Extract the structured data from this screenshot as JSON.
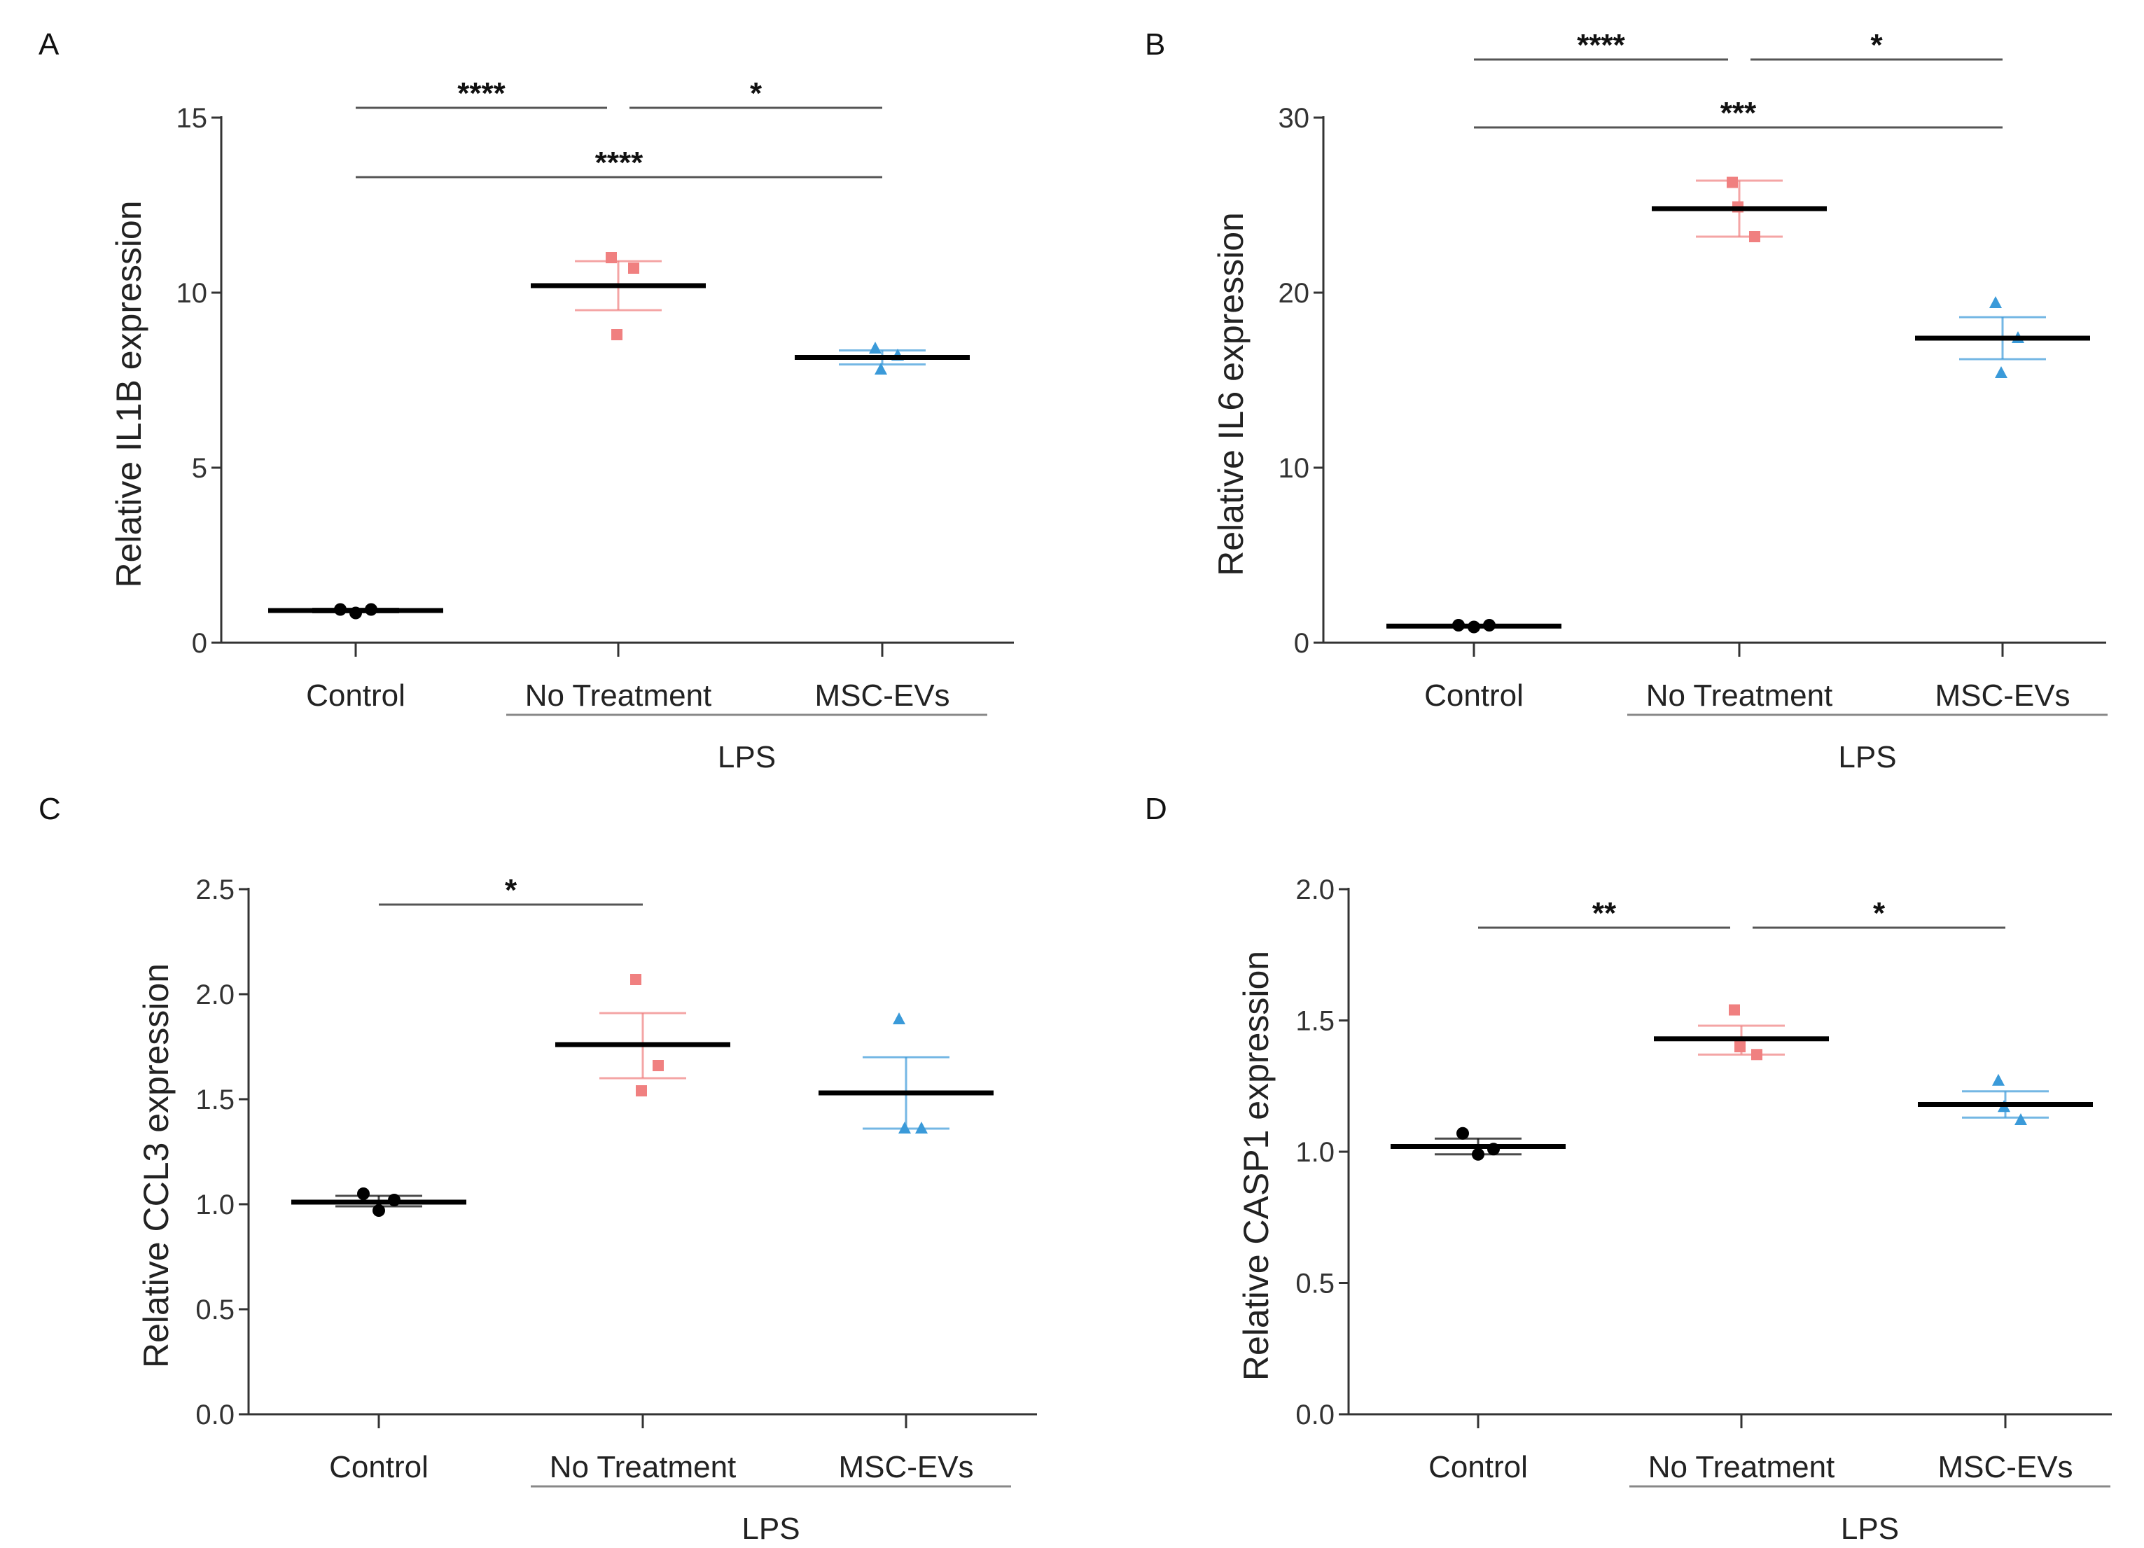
{
  "chart_data": [
    {
      "type": "scatter",
      "panel": "A",
      "ylabel": "Relative IL1B expression",
      "ylim": [
        0,
        15
      ],
      "yticks": [
        "0",
        "5",
        "10",
        "15"
      ],
      "ytick_values": [
        0,
        5,
        10,
        15
      ],
      "categories": [
        "Control",
        "No Treatment",
        "MSC-EVs"
      ],
      "group_label": "LPS",
      "series": [
        {
          "name": "Control",
          "color": "#000000",
          "marker": "circle",
          "points": [
            0.95,
            0.85,
            0.95
          ],
          "mean": 0.92,
          "err_low": 0.87,
          "err_high": 0.97
        },
        {
          "name": "No Treatment",
          "color": "#f08080",
          "marker": "square",
          "points": [
            11.0,
            10.7,
            8.8
          ],
          "mean": 10.2,
          "err_low": 9.5,
          "err_high": 10.9
        },
        {
          "name": "MSC-EVs",
          "color": "#3a9ad9",
          "marker": "triangle",
          "points": [
            8.4,
            8.2,
            7.8
          ],
          "mean": 8.15,
          "err_low": 7.95,
          "err_high": 8.35
        }
      ],
      "significance": [
        {
          "from": 0,
          "to": 1,
          "label": "****",
          "level": 2
        },
        {
          "from": 1,
          "to": 2,
          "label": "*",
          "level": 2
        },
        {
          "from": 0,
          "to": 2,
          "label": "****",
          "level": 1
        }
      ]
    },
    {
      "type": "scatter",
      "panel": "B",
      "ylabel": "Relative IL6 expression",
      "ylim": [
        0,
        30
      ],
      "yticks": [
        "0",
        "10",
        "20",
        "30"
      ],
      "ytick_values": [
        0,
        10,
        20,
        30
      ],
      "categories": [
        "Control",
        "No Treatment",
        "MSC-EVs"
      ],
      "group_label": "LPS",
      "series": [
        {
          "name": "Control",
          "color": "#000000",
          "marker": "circle",
          "points": [
            1.0,
            0.9,
            1.0
          ],
          "mean": 0.95,
          "err_low": 0.9,
          "err_high": 1.0
        },
        {
          "name": "No Treatment",
          "color": "#f08080",
          "marker": "square",
          "points": [
            26.3,
            23.2,
            24.9
          ],
          "mean": 24.8,
          "err_low": 23.2,
          "err_high": 26.4
        },
        {
          "name": "MSC-EVs",
          "color": "#3a9ad9",
          "marker": "triangle",
          "points": [
            19.4,
            17.4,
            15.4
          ],
          "mean": 17.4,
          "err_low": 16.2,
          "err_high": 18.6
        }
      ],
      "significance": [
        {
          "from": 0,
          "to": 1,
          "label": "****",
          "level": 2
        },
        {
          "from": 1,
          "to": 2,
          "label": "*",
          "level": 2
        },
        {
          "from": 0,
          "to": 2,
          "label": "***",
          "level": 1
        }
      ]
    },
    {
      "type": "scatter",
      "panel": "C",
      "ylabel": "Relative CCL3 expression",
      "ylim": [
        0,
        2.5
      ],
      "yticks": [
        "0.0",
        "0.5",
        "1.0",
        "1.5",
        "2.0",
        "2.5"
      ],
      "ytick_values": [
        0,
        0.5,
        1.0,
        1.5,
        2.0,
        2.5
      ],
      "categories": [
        "Control",
        "No Treatment",
        "MSC-EVs"
      ],
      "group_label": "LPS",
      "series": [
        {
          "name": "Control",
          "color": "#000000",
          "marker": "circle",
          "points": [
            1.05,
            0.97,
            1.02
          ],
          "mean": 1.01,
          "err_low": 0.99,
          "err_high": 1.04
        },
        {
          "name": "No Treatment",
          "color": "#f08080",
          "marker": "square",
          "points": [
            2.07,
            1.66,
            1.54
          ],
          "mean": 1.76,
          "err_low": 1.6,
          "err_high": 1.91
        },
        {
          "name": "MSC-EVs",
          "color": "#3a9ad9",
          "marker": "triangle",
          "points": [
            1.88,
            1.36,
            1.36
          ],
          "mean": 1.53,
          "err_low": 1.36,
          "err_high": 1.7
        }
      ],
      "significance": [
        {
          "from": 0,
          "to": 1,
          "label": "*",
          "level": 1
        }
      ]
    },
    {
      "type": "scatter",
      "panel": "D",
      "ylabel": "Relative CASP1 expression",
      "ylim": [
        0,
        2.0
      ],
      "yticks": [
        "0.0",
        "0.5",
        "1.0",
        "1.5",
        "2.0"
      ],
      "ytick_values": [
        0,
        0.5,
        1.0,
        1.5,
        2.0
      ],
      "categories": [
        "Control",
        "No Treatment",
        "MSC-EVs"
      ],
      "group_label": "LPS",
      "series": [
        {
          "name": "Control",
          "color": "#000000",
          "marker": "circle",
          "points": [
            1.07,
            0.99,
            1.01
          ],
          "mean": 1.02,
          "err_low": 0.99,
          "err_high": 1.05
        },
        {
          "name": "No Treatment",
          "color": "#f08080",
          "marker": "square",
          "points": [
            1.54,
            1.37,
            1.4
          ],
          "mean": 1.43,
          "err_low": 1.37,
          "err_high": 1.48
        },
        {
          "name": "MSC-EVs",
          "color": "#3a9ad9",
          "marker": "triangle",
          "points": [
            1.27,
            1.12,
            1.17
          ],
          "mean": 1.18,
          "err_low": 1.13,
          "err_high": 1.23
        }
      ],
      "significance": [
        {
          "from": 0,
          "to": 1,
          "label": "**",
          "level": 1
        },
        {
          "from": 1,
          "to": 2,
          "label": "*",
          "level": 1
        }
      ]
    }
  ]
}
